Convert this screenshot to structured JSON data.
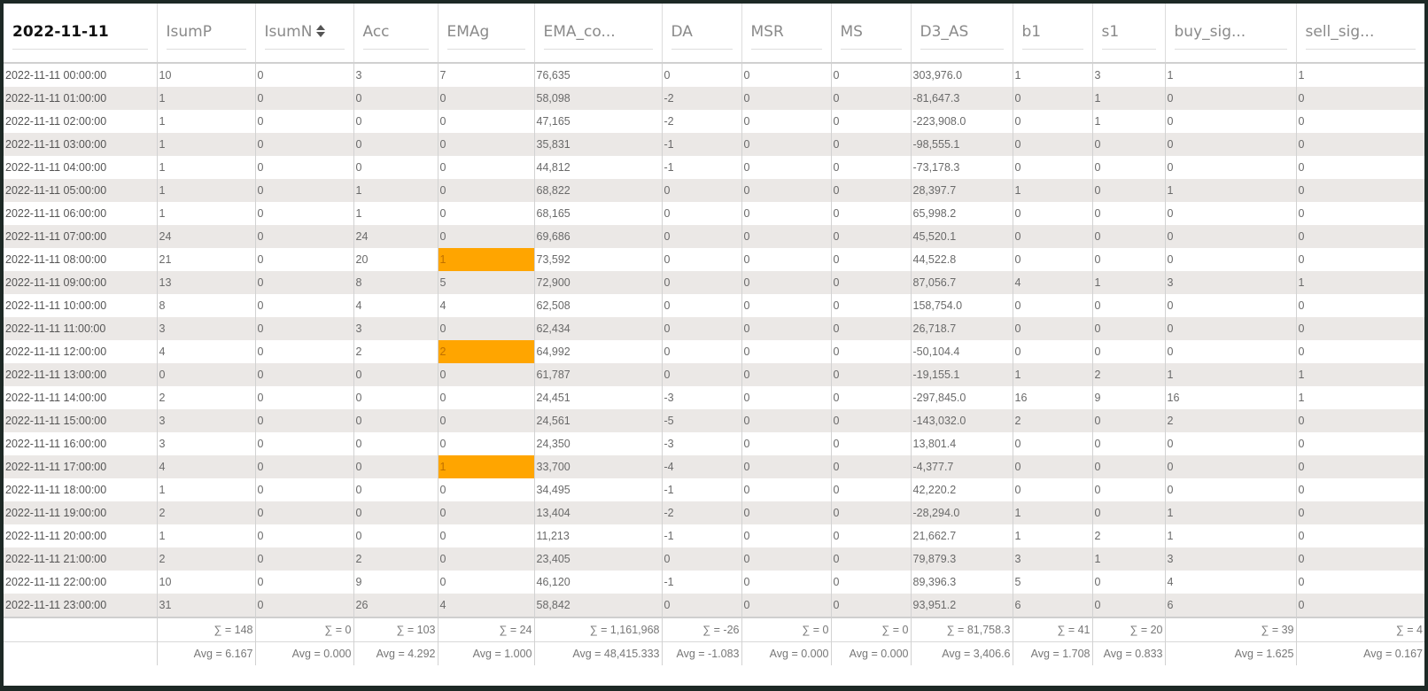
{
  "table": {
    "header": [
      "2022-11-11",
      "IsumP",
      "IsumN",
      "Acc",
      "EMAg",
      "EMA_co...",
      "DA",
      "MSR",
      "MS",
      "D3_AS",
      "b1",
      "s1",
      "buy_sig...",
      "sell_sig..."
    ],
    "rows": [
      [
        "2022-11-11 00:00:00",
        "10",
        "0",
        "3",
        "7",
        "76,635",
        "0",
        "0",
        "0",
        "303,976.0",
        "1",
        "3",
        "1",
        "1"
      ],
      [
        "2022-11-11 01:00:00",
        "1",
        "0",
        "0",
        "0",
        "58,098",
        "-2",
        "0",
        "0",
        "-81,647.3",
        "0",
        "1",
        "0",
        "0"
      ],
      [
        "2022-11-11 02:00:00",
        "1",
        "0",
        "0",
        "0",
        "47,165",
        "-2",
        "0",
        "0",
        "-223,908.0",
        "0",
        "1",
        "0",
        "0"
      ],
      [
        "2022-11-11 03:00:00",
        "1",
        "0",
        "0",
        "0",
        "35,831",
        "-1",
        "0",
        "0",
        "-98,555.1",
        "0",
        "0",
        "0",
        "0"
      ],
      [
        "2022-11-11 04:00:00",
        "1",
        "0",
        "0",
        "0",
        "44,812",
        "-1",
        "0",
        "0",
        "-73,178.3",
        "0",
        "0",
        "0",
        "0"
      ],
      [
        "2022-11-11 05:00:00",
        "1",
        "0",
        "1",
        "0",
        "68,822",
        "0",
        "0",
        "0",
        "28,397.7",
        "1",
        "0",
        "1",
        "0"
      ],
      [
        "2022-11-11 06:00:00",
        "1",
        "0",
        "1",
        "0",
        "68,165",
        "0",
        "0",
        "0",
        "65,998.2",
        "0",
        "0",
        "0",
        "0"
      ],
      [
        "2022-11-11 07:00:00",
        "24",
        "0",
        "24",
        "0",
        "69,686",
        "0",
        "0",
        "0",
        "45,520.1",
        "0",
        "0",
        "0",
        "0"
      ],
      [
        "2022-11-11 08:00:00",
        "21",
        "0",
        "20",
        "1",
        "73,592",
        "0",
        "0",
        "0",
        "44,522.8",
        "0",
        "0",
        "0",
        "0"
      ],
      [
        "2022-11-11 09:00:00",
        "13",
        "0",
        "8",
        "5",
        "72,900",
        "0",
        "0",
        "0",
        "87,056.7",
        "4",
        "1",
        "3",
        "1"
      ],
      [
        "2022-11-11 10:00:00",
        "8",
        "0",
        "4",
        "4",
        "62,508",
        "0",
        "0",
        "0",
        "158,754.0",
        "0",
        "0",
        "0",
        "0"
      ],
      [
        "2022-11-11 11:00:00",
        "3",
        "0",
        "3",
        "0",
        "62,434",
        "0",
        "0",
        "0",
        "26,718.7",
        "0",
        "0",
        "0",
        "0"
      ],
      [
        "2022-11-11 12:00:00",
        "4",
        "0",
        "2",
        "2",
        "64,992",
        "0",
        "0",
        "0",
        "-50,104.4",
        "0",
        "0",
        "0",
        "0"
      ],
      [
        "2022-11-11 13:00:00",
        "0",
        "0",
        "0",
        "0",
        "61,787",
        "0",
        "0",
        "0",
        "-19,155.1",
        "1",
        "2",
        "1",
        "1"
      ],
      [
        "2022-11-11 14:00:00",
        "2",
        "0",
        "0",
        "0",
        "24,451",
        "-3",
        "0",
        "0",
        "-297,845.0",
        "16",
        "9",
        "16",
        "1"
      ],
      [
        "2022-11-11 15:00:00",
        "3",
        "0",
        "0",
        "0",
        "24,561",
        "-5",
        "0",
        "0",
        "-143,032.0",
        "2",
        "0",
        "2",
        "0"
      ],
      [
        "2022-11-11 16:00:00",
        "3",
        "0",
        "0",
        "0",
        "24,350",
        "-3",
        "0",
        "0",
        "13,801.4",
        "0",
        "0",
        "0",
        "0"
      ],
      [
        "2022-11-11 17:00:00",
        "4",
        "0",
        "0",
        "1",
        "33,700",
        "-4",
        "0",
        "0",
        "-4,377.7",
        "0",
        "0",
        "0",
        "0"
      ],
      [
        "2022-11-11 18:00:00",
        "1",
        "0",
        "0",
        "0",
        "34,495",
        "-1",
        "0",
        "0",
        "42,220.2",
        "0",
        "0",
        "0",
        "0"
      ],
      [
        "2022-11-11 19:00:00",
        "2",
        "0",
        "0",
        "0",
        "13,404",
        "-2",
        "0",
        "0",
        "-28,294.0",
        "1",
        "0",
        "1",
        "0"
      ],
      [
        "2022-11-11 20:00:00",
        "1",
        "0",
        "0",
        "0",
        "11,213",
        "-1",
        "0",
        "0",
        "21,662.7",
        "1",
        "2",
        "1",
        "0"
      ],
      [
        "2022-11-11 21:00:00",
        "2",
        "0",
        "2",
        "0",
        "23,405",
        "0",
        "0",
        "0",
        "79,879.3",
        "3",
        "1",
        "3",
        "0"
      ],
      [
        "2022-11-11 22:00:00",
        "10",
        "0",
        "9",
        "0",
        "46,120",
        "-1",
        "0",
        "0",
        "89,396.3",
        "5",
        "0",
        "4",
        "0"
      ],
      [
        "2022-11-11 23:00:00",
        "31",
        "0",
        "26",
        "4",
        "58,842",
        "0",
        "0",
        "0",
        "93,951.2",
        "6",
        "0",
        "6",
        "0"
      ]
    ],
    "sums": [
      "∑ = 148",
      "∑ = 0",
      "∑ = 103",
      "∑ = 24",
      "∑ = 1,161,968",
      "∑ = -26",
      "∑ = 0",
      "∑ = 0",
      "∑ = 81,758.3",
      "∑ = 41",
      "∑ = 20",
      "∑ = 39",
      "∑ = 4"
    ],
    "avgs": [
      "Avg = 6.167",
      "Avg = 0.000",
      "Avg = 4.292",
      "Avg = 1.000",
      "Avg = 48,415.333",
      "Avg = -1.083",
      "Avg = 0.000",
      "Avg = 0.000",
      "Avg = 3,406.6",
      "Avg = 1.708",
      "Avg = 0.833",
      "Avg = 1.625",
      "Avg = 0.167"
    ]
  }
}
